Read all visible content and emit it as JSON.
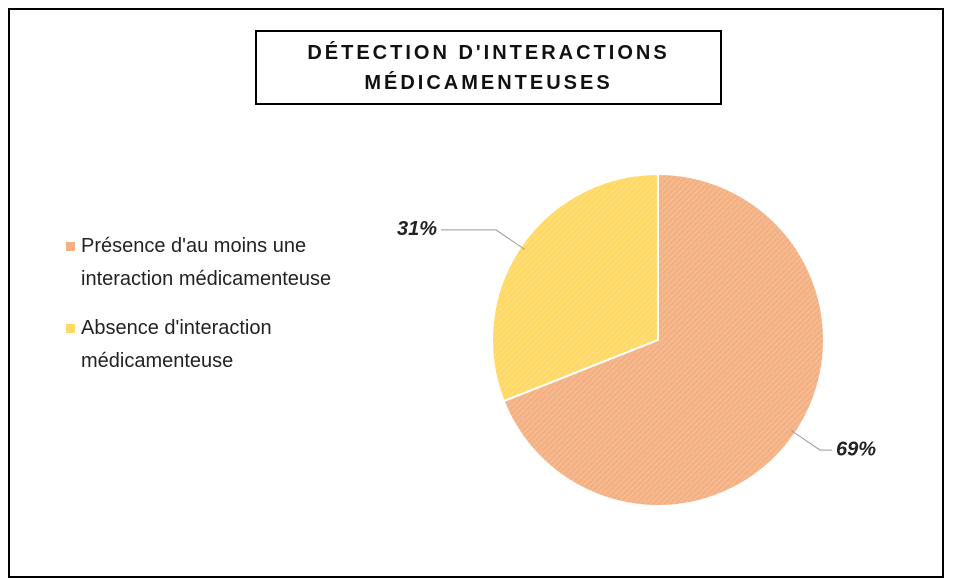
{
  "chart_data": {
    "type": "pie",
    "title": "DÉTECTION D'INTERACTIONS MÉDICAMENTEUSES",
    "categories": [
      "Présence d'au moins une interaction médicamenteuse",
      "Absence d'interaction médicamenteuse"
    ],
    "values": [
      69,
      31
    ],
    "value_labels": [
      "69%",
      "31%"
    ],
    "colors": [
      "#f4b183",
      "#ffd966"
    ],
    "legend": "left"
  }
}
